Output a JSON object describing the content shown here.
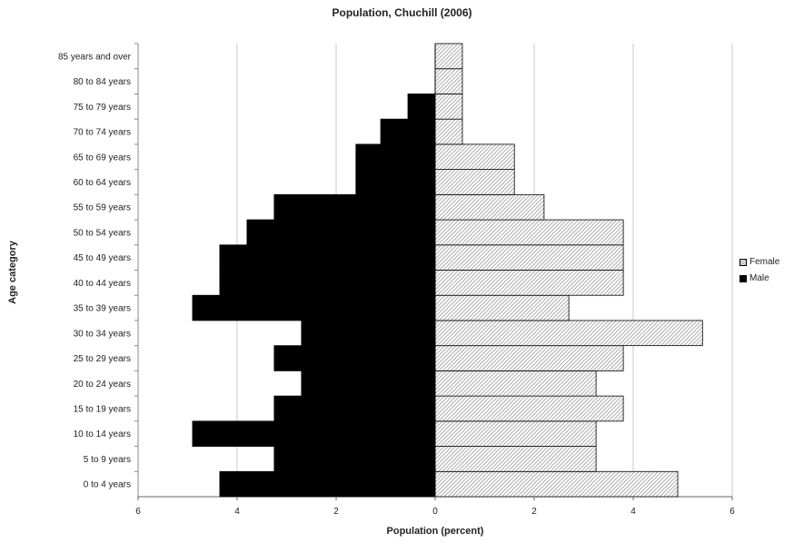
{
  "chart_data": {
    "type": "bar",
    "orientation": "horizontal",
    "title": "Population, Chuchill (2006)",
    "xlabel": "Population (percent)",
    "ylabel": "Age category",
    "xlim": [
      -6,
      6
    ],
    "x_ticks": [
      -6,
      -4,
      -2,
      0,
      2,
      4,
      6
    ],
    "x_tick_labels": [
      "6",
      "4",
      "2",
      "0",
      "2",
      "4",
      "6"
    ],
    "grid": "vertical",
    "legend_position": "right",
    "categories": [
      "0 to 4 years",
      "5 to 9 years",
      "10 to 14 years",
      "15 to 19 years",
      "20 to 24 years",
      "25 to 29 years",
      "30 to 34 years",
      "35 to 39 years",
      "40 to 44 years",
      "45 to 49 years",
      "50 to 54 years",
      "55 to 59 years",
      "60 to 64 years",
      "65 to 69 years",
      "70 to 74 years",
      "75 to 79 years",
      "80 to 84 years",
      "85 years and over"
    ],
    "series": [
      {
        "name": "Female",
        "side": "right",
        "pattern": "diagonal-hatch",
        "color": "#ffffff",
        "values": [
          4.9,
          3.25,
          3.25,
          3.8,
          3.25,
          3.8,
          5.4,
          2.7,
          3.8,
          3.8,
          3.8,
          2.2,
          1.6,
          1.6,
          0.55,
          0.55,
          0.55,
          0.55
        ]
      },
      {
        "name": "Male",
        "side": "left",
        "color": "#000000",
        "values": [
          4.35,
          3.25,
          4.9,
          3.25,
          2.7,
          3.25,
          2.7,
          4.9,
          4.35,
          4.35,
          3.8,
          3.25,
          1.6,
          1.6,
          1.1,
          0.55,
          0,
          0
        ]
      }
    ]
  }
}
